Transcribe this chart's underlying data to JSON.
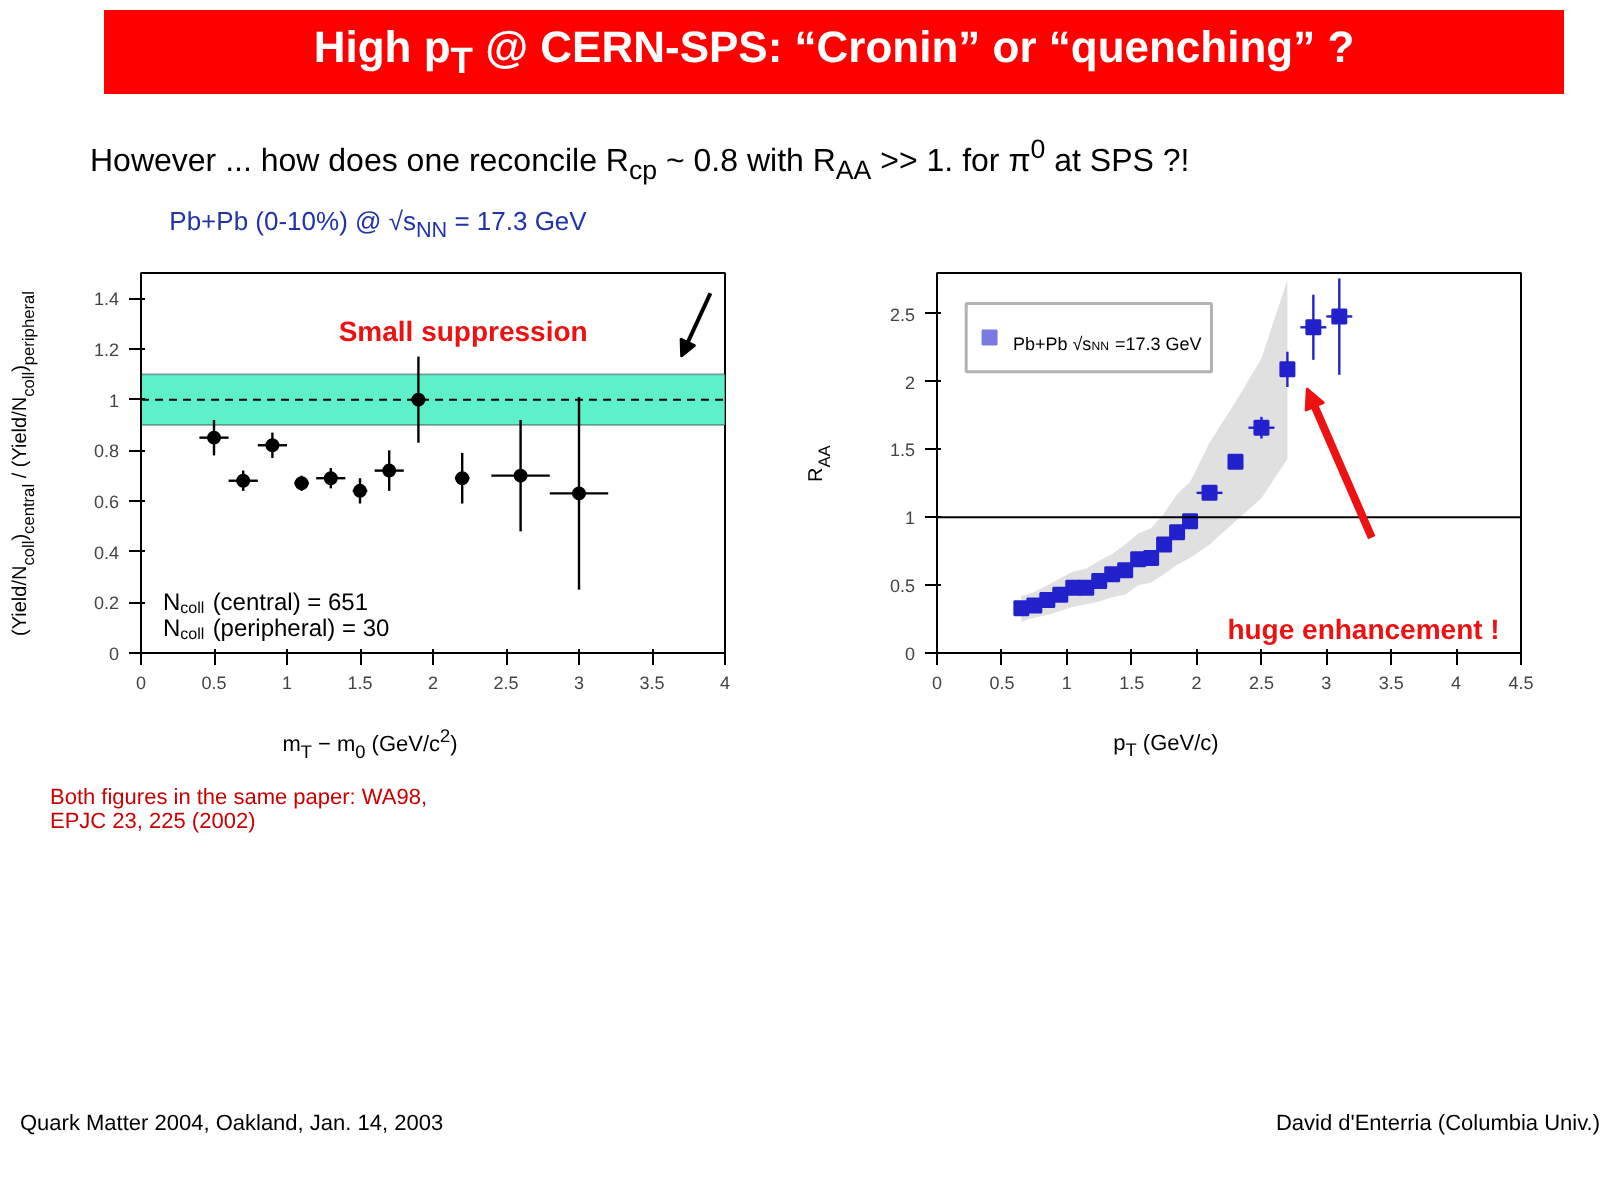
{
  "chart_data": [
    {
      "type": "scatter",
      "title": "High p$_{T}$ @ CERN-SPS: “Cronin” or “quenching” ?",
      "subtitle": "However ... how does one reconcile R$_{cp}$ ~ 0.8  with R$_{AA}$ >> 1. for π$^{0}$ at SPS ?!",
      "xlabel": "m$_{T}$ − m$_{0}$ (GeV/c$^{2}$)",
      "ylabel": "(Yield/N$_{coll}$)$_{central}$ / (Yield/N$_{coll}$)$_{peripheral}$",
      "x": [
        0.5,
        0.7,
        0.9,
        1.1,
        1.3,
        1.5,
        1.7,
        1.9,
        2.2,
        2.6,
        3.0
      ],
      "series": [
        {
          "color": "#000000",
          "values": [
            0.85,
            0.68,
            0.82,
            0.67,
            0.69,
            0.64,
            0.72,
            1.0,
            0.69,
            0.7,
            0.63
          ],
          "errors": [
            0.07,
            0.04,
            0.05,
            0.03,
            0.04,
            0.05,
            0.08,
            0.17,
            0.1,
            0.22,
            [
              0.25,
              1.01
            ]
          ],
          "xerrors": [
            0.1,
            0.1,
            0.1,
            0.05,
            0.1,
            0.05,
            0.1,
            0.05,
            0.05,
            0.2,
            0.2
          ]
        }
      ],
      "marker": "circle",
      "xlim": [
        0,
        4
      ],
      "ylim": [
        0,
        1.5
      ],
      "xticks": [
        0,
        0.5,
        1,
        1.5,
        2,
        2.5,
        3,
        3.5,
        4
      ],
      "yticks": [
        0,
        0.2,
        0.4,
        0.6,
        0.8,
        1,
        1.2,
        1.4
      ],
      "grid": false,
      "bands": [
        {
          "axis": "y",
          "from": 0.9,
          "to": 1.1,
          "color": "#5ef0c8"
        }
      ],
      "ref_lines": [
        {
          "axis": "y",
          "value": 1,
          "line_style": "dashed",
          "color": "#000000"
        }
      ],
      "annotations": [
        "Pb+Pb (0-10%) @ √s$_{NN}$ = 17.3 GeV",
        "Small suppression",
        "N$_{coll}$ (central)      = 651",
        "N$_{coll}$ (peripheral) =  30",
        "Both figures in the same paper: WA98, EPJC 23, 225 (2002)",
        "Quark Matter 2004, Oakland, Jan. 14, 2003",
        "David d'Enterria (Columbia Univ.)"
      ]
    },
    {
      "type": "scatter",
      "xlabel": "p$_{T}$ (GeV/c)",
      "ylabel": "R$_{AA}$",
      "x": [
        0.65,
        0.75,
        0.85,
        0.95,
        1.05,
        1.15,
        1.25,
        1.35,
        1.45,
        1.55,
        1.65,
        1.75,
        1.85,
        1.95,
        2.1,
        2.3,
        2.5,
        2.7,
        2.9,
        3.1
      ],
      "series": [
        {
          "name": "Pb+Pb √s$_{NN}$=17.3 GeV",
          "color": "#2222cc",
          "values": [
            0.33,
            0.35,
            0.39,
            0.43,
            0.48,
            0.48,
            0.53,
            0.58,
            0.61,
            0.69,
            0.7,
            0.8,
            0.89,
            0.97,
            1.18,
            1.41,
            1.66,
            2.09,
            2.4,
            2.48
          ],
          "errors": [
            null,
            null,
            null,
            null,
            null,
            null,
            null,
            null,
            null,
            null,
            null,
            null,
            null,
            null,
            null,
            0.05,
            0.08,
            0.13,
            0.24,
            [
              2.05,
              2.76
            ]
          ],
          "xerrors": [
            null,
            null,
            null,
            null,
            null,
            null,
            null,
            null,
            null,
            null,
            null,
            null,
            null,
            null,
            0.1,
            0.05,
            0.1,
            0.05,
            0.1,
            0.1
          ],
          "lower": [
            0.23,
            0.26,
            0.28,
            0.31,
            0.34,
            0.36,
            0.38,
            0.41,
            0.43,
            0.5,
            0.52,
            0.58,
            0.65,
            0.7,
            0.8,
            0.97,
            1.14,
            1.43,
            null,
            null
          ],
          "upper": [
            0.42,
            0.45,
            0.5,
            0.55,
            0.6,
            0.62,
            0.68,
            0.73,
            0.8,
            0.88,
            0.92,
            1.03,
            1.17,
            1.26,
            1.55,
            1.85,
            2.17,
            2.75,
            null,
            null
          ]
        }
      ],
      "marker": "square",
      "xlim": [
        0,
        4.5
      ],
      "ylim": [
        0,
        2.8
      ],
      "xticks": [
        0,
        0.5,
        1,
        1.5,
        2,
        2.5,
        3,
        3.5,
        4,
        4.5
      ],
      "yticks": [
        0,
        0.5,
        1,
        1.5,
        2,
        2.5
      ],
      "grid": false,
      "legend": "top left",
      "ref_lines": [
        {
          "axis": "y",
          "value": 1,
          "line_style": "solid",
          "color": "#000000"
        }
      ],
      "annotations": [
        "huge enhancement !"
      ]
    }
  ]
}
